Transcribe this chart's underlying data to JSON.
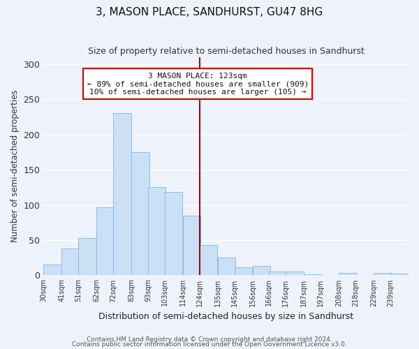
{
  "title": "3, MASON PLACE, SANDHURST, GU47 8HG",
  "subtitle": "Size of property relative to semi-detached houses in Sandhurst",
  "xlabel": "Distribution of semi-detached houses by size in Sandhurst",
  "ylabel": "Number of semi-detached properties",
  "bar_labels": [
    "30sqm",
    "41sqm",
    "51sqm",
    "62sqm",
    "72sqm",
    "83sqm",
    "93sqm",
    "103sqm",
    "114sqm",
    "124sqm",
    "135sqm",
    "145sqm",
    "156sqm",
    "166sqm",
    "176sqm",
    "187sqm",
    "197sqm",
    "208sqm",
    "218sqm",
    "229sqm",
    "239sqm"
  ],
  "bar_values": [
    15,
    38,
    53,
    97,
    230,
    175,
    125,
    118,
    85,
    43,
    25,
    11,
    13,
    5,
    5,
    1,
    0,
    3,
    0,
    3,
    2
  ],
  "bar_color": "#cce0f5",
  "bar_edge_color": "#7ab8e8",
  "background_color": "#eef2fb",
  "grid_color": "#ffffff",
  "ylim": [
    0,
    310
  ],
  "yticks": [
    0,
    50,
    100,
    150,
    200,
    250,
    300
  ],
  "property_line_color": "#aa0000",
  "annotation_title": "3 MASON PLACE: 123sqm",
  "annotation_line1": "← 89% of semi-detached houses are smaller (909)",
  "annotation_line2": "10% of semi-detached houses are larger (105) →",
  "annotation_box_color": "#ffffff",
  "annotation_box_edge_color": "#cc0000",
  "footnote1": "Contains HM Land Registry data © Crown copyright and database right 2024.",
  "footnote2": "Contains public sector information licensed under the Open Government Licence v3.0.",
  "bin_width": 11,
  "prop_bin_index": 9
}
